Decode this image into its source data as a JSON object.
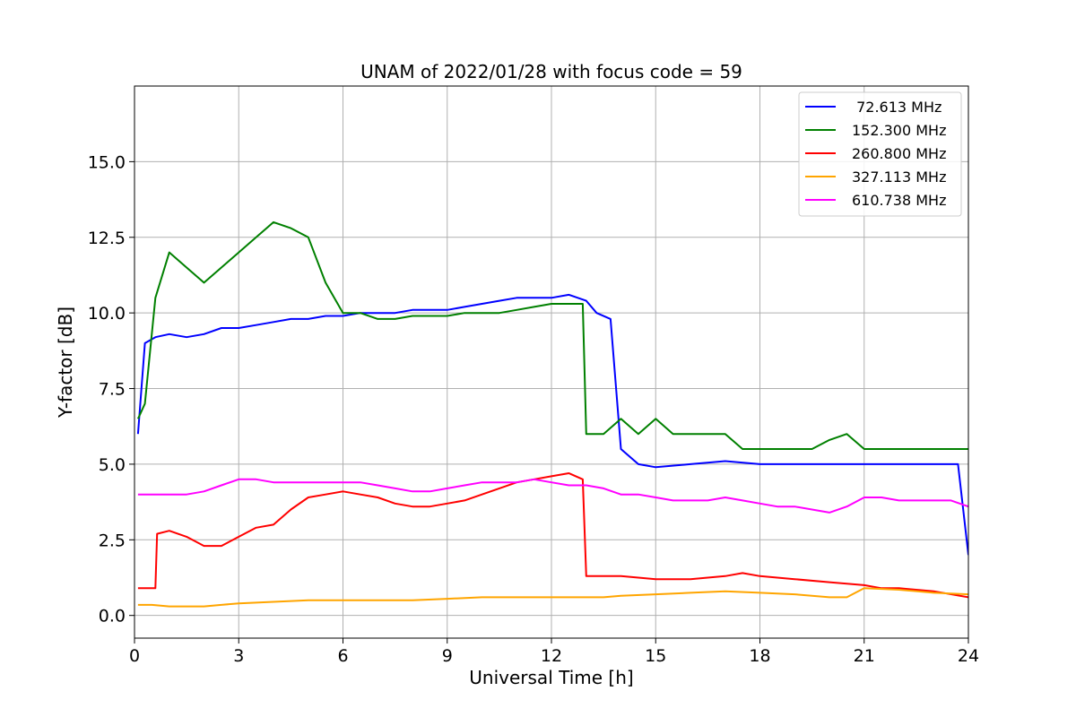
{
  "chart_data": {
    "type": "line",
    "title": "UNAM of 2022/01/28 with focus code = 59",
    "xlabel": "Universal Time [h]",
    "ylabel": "Y-factor [dB]",
    "xlim": [
      0,
      24
    ],
    "ylim": [
      -0.75,
      17.5
    ],
    "xticks": [
      "0",
      "3",
      "6",
      "9",
      "12",
      "15",
      "18",
      "21",
      "24"
    ],
    "yticks": [
      "0.0",
      "2.5",
      "5.0",
      "7.5",
      "10.0",
      "12.5",
      "15.0"
    ],
    "grid": true,
    "legend_position": "top-right",
    "series": [
      {
        "name": " 72.613 MHz",
        "color": "#0000ff",
        "x": [
          0.1,
          0.3,
          0.6,
          1,
          1.5,
          2,
          2.5,
          3,
          3.5,
          4,
          4.5,
          5,
          5.5,
          6,
          6.5,
          7,
          7.5,
          8,
          8.5,
          9,
          9.5,
          10,
          10.5,
          11,
          11.5,
          12,
          12.5,
          13,
          13.3,
          13.7,
          14,
          14.5,
          15,
          16,
          17,
          18,
          19,
          20,
          21,
          22,
          23,
          23.7,
          24
        ],
        "y": [
          6.0,
          9.0,
          9.2,
          9.3,
          9.2,
          9.3,
          9.5,
          9.5,
          9.6,
          9.7,
          9.8,
          9.8,
          9.9,
          9.9,
          10.0,
          10.0,
          10.0,
          10.1,
          10.1,
          10.1,
          10.2,
          10.3,
          10.4,
          10.5,
          10.5,
          10.5,
          10.6,
          10.4,
          10.0,
          9.8,
          5.5,
          5.0,
          4.9,
          5.0,
          5.1,
          5.0,
          5.0,
          5.0,
          5.0,
          5.0,
          5.0,
          5.0,
          2.0
        ]
      },
      {
        "name": "152.300 MHz",
        "color": "#008000",
        "x": [
          0.1,
          0.3,
          0.6,
          1,
          1.5,
          2,
          2.5,
          3,
          3.5,
          4,
          4.5,
          5,
          5.5,
          6,
          6.5,
          7,
          7.5,
          8,
          8.5,
          9,
          9.5,
          10,
          10.5,
          11,
          11.5,
          12,
          12.5,
          12.9,
          13,
          13.5,
          14,
          14.5,
          15,
          15.5,
          16,
          16.5,
          17,
          17.5,
          18,
          18.5,
          19,
          19.5,
          20,
          20.5,
          21,
          21.5,
          22,
          22.5,
          23,
          23.5,
          24
        ],
        "y": [
          6.5,
          7.0,
          10.5,
          12.0,
          11.5,
          11.0,
          11.5,
          12.0,
          12.5,
          13.0,
          12.8,
          12.5,
          11.0,
          10.0,
          10.0,
          9.8,
          9.8,
          9.9,
          9.9,
          9.9,
          10.0,
          10.0,
          10.0,
          10.1,
          10.2,
          10.3,
          10.3,
          10.3,
          6.0,
          6.0,
          6.5,
          6.0,
          6.5,
          6.0,
          6.0,
          6.0,
          6.0,
          5.5,
          5.5,
          5.5,
          5.5,
          5.5,
          5.8,
          6.0,
          5.5,
          5.5,
          5.5,
          5.5,
          5.5,
          5.5,
          5.5
        ]
      },
      {
        "name": "260.800 MHz",
        "color": "#ff0000",
        "x": [
          0.1,
          0.3,
          0.6,
          0.65,
          1,
          1.5,
          2,
          2.5,
          3,
          3.5,
          4,
          4.5,
          5,
          5.5,
          6,
          6.5,
          7,
          7.5,
          8,
          8.5,
          9,
          9.5,
          10,
          10.5,
          11,
          11.5,
          12,
          12.5,
          12.9,
          13,
          13.5,
          14,
          15,
          16,
          17,
          17.5,
          18,
          19,
          20,
          21,
          21.5,
          22,
          23,
          24
        ],
        "y": [
          0.9,
          0.9,
          0.9,
          2.7,
          2.8,
          2.6,
          2.3,
          2.3,
          2.6,
          2.9,
          3.0,
          3.5,
          3.9,
          4.0,
          4.1,
          4.0,
          3.9,
          3.7,
          3.6,
          3.6,
          3.7,
          3.8,
          4.0,
          4.2,
          4.4,
          4.5,
          4.6,
          4.7,
          4.5,
          1.3,
          1.3,
          1.3,
          1.2,
          1.2,
          1.3,
          1.4,
          1.3,
          1.2,
          1.1,
          1.0,
          0.9,
          0.9,
          0.8,
          0.6
        ]
      },
      {
        "name": "327.113 MHz",
        "color": "#ffa500",
        "x": [
          0.1,
          0.5,
          1,
          1.5,
          2,
          2.5,
          3,
          4,
          5,
          6,
          7,
          8,
          9,
          10,
          11,
          12,
          13,
          13.5,
          14,
          15,
          16,
          17,
          18,
          19,
          20,
          20.5,
          21,
          22,
          23,
          24
        ],
        "y": [
          0.35,
          0.35,
          0.3,
          0.3,
          0.3,
          0.35,
          0.4,
          0.45,
          0.5,
          0.5,
          0.5,
          0.5,
          0.55,
          0.6,
          0.6,
          0.6,
          0.6,
          0.6,
          0.65,
          0.7,
          0.75,
          0.8,
          0.75,
          0.7,
          0.6,
          0.6,
          0.9,
          0.85,
          0.75,
          0.7
        ]
      },
      {
        "name": "610.738 MHz",
        "color": "#ff00ff",
        "x": [
          0.1,
          0.5,
          1,
          1.5,
          2,
          2.5,
          3,
          3.5,
          4,
          4.5,
          5,
          5.5,
          6,
          6.5,
          7,
          7.5,
          8,
          8.5,
          9,
          9.5,
          10,
          10.5,
          11,
          11.5,
          12,
          12.5,
          13,
          13.5,
          14,
          14.5,
          15,
          15.5,
          16,
          16.5,
          17,
          17.5,
          18,
          18.5,
          19,
          19.5,
          20,
          20.5,
          21,
          21.5,
          22,
          22.5,
          23,
          23.5,
          24
        ],
        "y": [
          4.0,
          4.0,
          4.0,
          4.0,
          4.1,
          4.3,
          4.5,
          4.5,
          4.4,
          4.4,
          4.4,
          4.4,
          4.4,
          4.4,
          4.3,
          4.2,
          4.1,
          4.1,
          4.2,
          4.3,
          4.4,
          4.4,
          4.4,
          4.5,
          4.4,
          4.3,
          4.3,
          4.2,
          4.0,
          4.0,
          3.9,
          3.8,
          3.8,
          3.8,
          3.9,
          3.8,
          3.7,
          3.6,
          3.6,
          3.5,
          3.4,
          3.6,
          3.9,
          3.9,
          3.8,
          3.8,
          3.8,
          3.8,
          3.6
        ]
      }
    ]
  }
}
